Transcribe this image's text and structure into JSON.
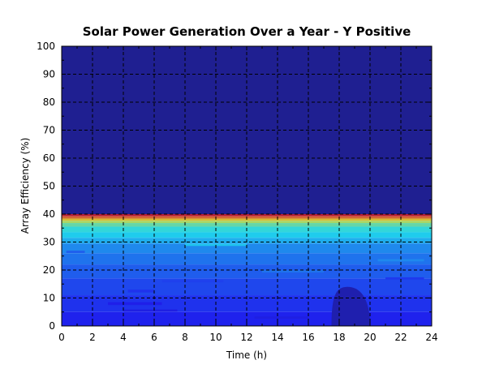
{
  "chart_data": {
    "type": "heatmap",
    "title": "Solar Power Generation Over a Year - Y Positive",
    "xlabel": "Time (h)",
    "ylabel": "Array Efficiency (%)",
    "xlim": [
      0,
      24
    ],
    "ylim": [
      0,
      100
    ],
    "x_ticks": [
      0,
      2,
      4,
      6,
      8,
      10,
      12,
      14,
      16,
      18,
      20,
      22,
      24
    ],
    "y_ticks": [
      0,
      10,
      20,
      30,
      40,
      50,
      60,
      70,
      80,
      90,
      100
    ],
    "x_tick_labels": [
      "0",
      "2",
      "4",
      "6",
      "8",
      "10",
      "12",
      "14",
      "16",
      "18",
      "20",
      "22",
      "24"
    ],
    "y_tick_labels": [
      "0",
      "10",
      "20",
      "30",
      "40",
      "50",
      "60",
      "70",
      "80",
      "90",
      "100"
    ],
    "grid": true,
    "legend": "none",
    "colormap": "jet",
    "bands": [
      {
        "y0": 40,
        "y1": 100,
        "level": 0.0
      },
      {
        "y0": 39.2,
        "y1": 40,
        "level": 0.92
      },
      {
        "y0": 38.4,
        "y1": 39.2,
        "level": 0.78
      },
      {
        "y0": 37.6,
        "y1": 38.4,
        "level": 0.66
      },
      {
        "y0": 36.8,
        "y1": 37.6,
        "level": 0.56
      },
      {
        "y0": 35.5,
        "y1": 36.8,
        "level": 0.47
      },
      {
        "y0": 33.5,
        "y1": 35.5,
        "level": 0.4
      },
      {
        "y0": 31.5,
        "y1": 33.5,
        "level": 0.36
      },
      {
        "y0": 29.5,
        "y1": 31.5,
        "level": 0.32
      },
      {
        "y0": 26,
        "y1": 29.5,
        "level": 0.27
      },
      {
        "y0": 22,
        "y1": 26,
        "level": 0.24
      },
      {
        "y0": 17,
        "y1": 22,
        "level": 0.21
      },
      {
        "y0": 11,
        "y1": 17,
        "level": 0.18
      },
      {
        "y0": 5,
        "y1": 11,
        "level": 0.15
      },
      {
        "y0": 0,
        "y1": 5,
        "level": 0.13
      }
    ],
    "streaks": [
      {
        "x0": 0.3,
        "x1": 1.5,
        "y": 26.5,
        "h": 0.8,
        "level": 0.21
      },
      {
        "x0": 4.3,
        "x1": 6.0,
        "y": 12.5,
        "h": 1.0,
        "level": 0.15
      },
      {
        "x0": 3.0,
        "x1": 6.5,
        "y": 8.0,
        "h": 1.0,
        "level": 0.12
      },
      {
        "x0": 4.0,
        "x1": 7.5,
        "y": 5.5,
        "h": 0.8,
        "level": 0.11
      },
      {
        "x0": 12.5,
        "x1": 16.0,
        "y": 3.0,
        "h": 0.8,
        "level": 0.11
      },
      {
        "x0": 6.5,
        "x1": 10.5,
        "y": 16.0,
        "h": 0.8,
        "level": 0.17
      },
      {
        "x0": 13.0,
        "x1": 17.0,
        "y": 19.5,
        "h": 0.8,
        "level": 0.24
      },
      {
        "x0": 20.5,
        "x1": 23.5,
        "y": 23.5,
        "h": 0.8,
        "level": 0.27
      },
      {
        "x0": 21.0,
        "x1": 23.5,
        "y": 17.0,
        "h": 0.8,
        "level": 0.16
      },
      {
        "x0": 8.0,
        "x1": 12.0,
        "y": 29.0,
        "h": 0.8,
        "level": 0.35
      }
    ],
    "dark_region": {
      "x_start": 17.5,
      "x_end": 20.0,
      "y_peak": 14,
      "level": 0.04
    }
  }
}
